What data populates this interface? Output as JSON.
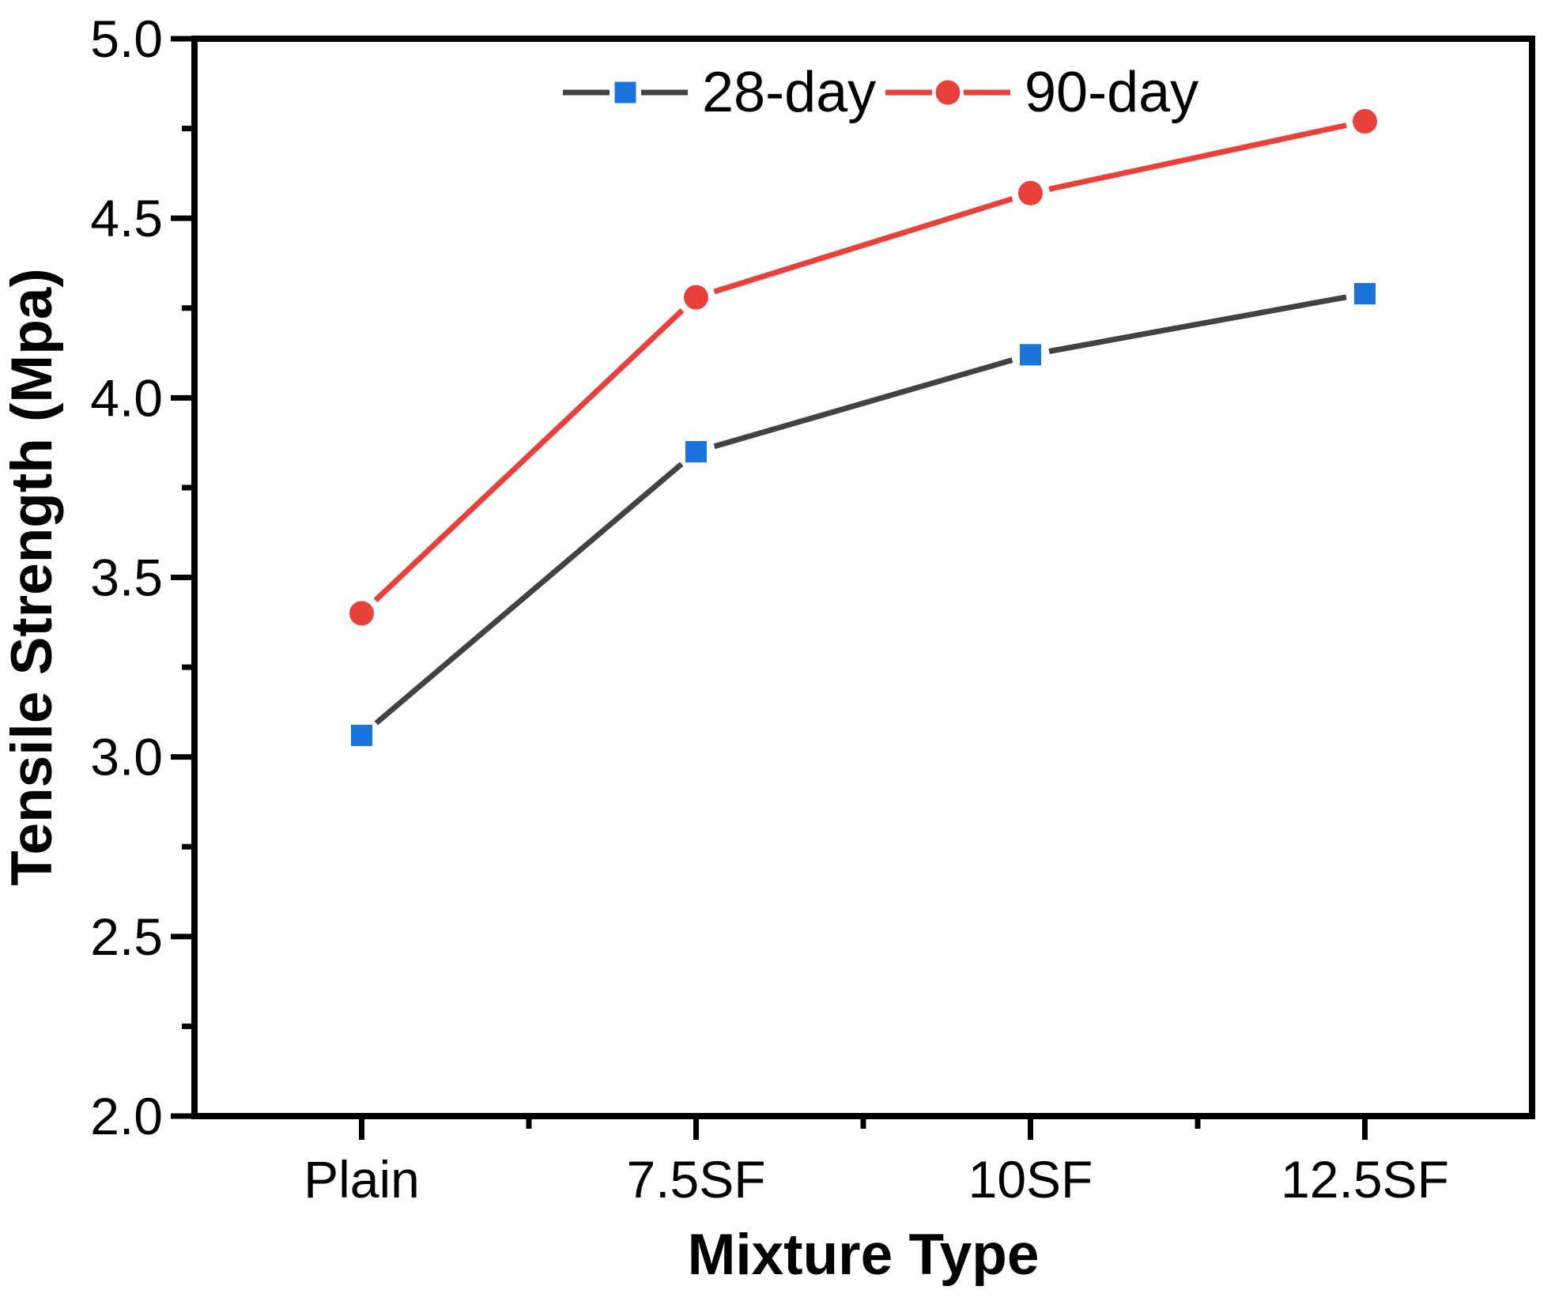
{
  "chart_data": {
    "type": "line",
    "title": "",
    "xlabel": "Mixture Type",
    "ylabel": "Tensile Strength (Mpa)",
    "categories": [
      "Plain",
      "7.5SF",
      "10SF",
      "12.5SF"
    ],
    "series": [
      {
        "name": "28-day",
        "values": [
          3.06,
          3.85,
          4.12,
          4.29
        ],
        "line_color": "#424242",
        "marker": "square",
        "marker_color": "#1b73dc"
      },
      {
        "name": "90-day",
        "values": [
          3.4,
          4.28,
          4.57,
          4.77
        ],
        "line_color": "#e8413c",
        "marker": "circle",
        "marker_color": "#e8413c"
      }
    ],
    "ylim": [
      2.0,
      5.0
    ],
    "y_major_step": 0.5,
    "y_minor_step": 0.25,
    "y_tick_labels": [
      "2.0",
      "2.5",
      "3.0",
      "3.5",
      "4.0",
      "4.5",
      "5.0"
    ],
    "x_minor_ticks_between_categories": true,
    "grid": false,
    "legend_position": "top-center",
    "legend_frame": false,
    "axis_color": "#000000",
    "background_color": "#ffffff"
  }
}
